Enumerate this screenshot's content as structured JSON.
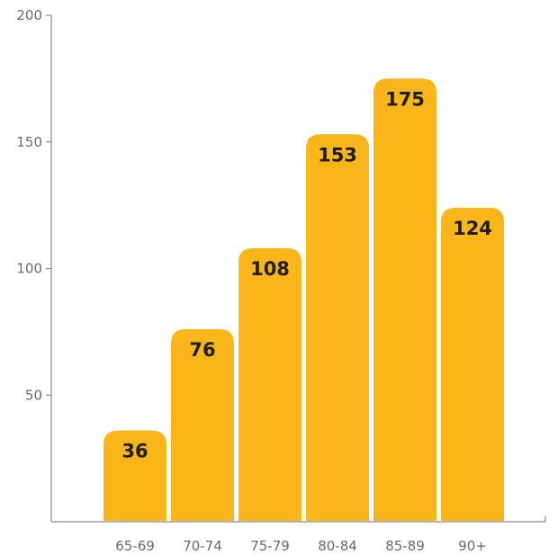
{
  "chart_data": {
    "type": "bar",
    "categories": [
      "65-69",
      "70-74",
      "75-79",
      "80-84",
      "85-89",
      "90+"
    ],
    "values": [
      36,
      76,
      108,
      153,
      175,
      124
    ],
    "value_labels": [
      "36",
      "76",
      "108",
      "153",
      "175",
      "124"
    ],
    "title": "",
    "xlabel": "",
    "ylabel": "",
    "ylim": [
      0,
      200
    ],
    "yticks": [
      50,
      100,
      150,
      200
    ],
    "ytick_labels": [
      "50",
      "100",
      "150",
      "200"
    ],
    "grid": false,
    "legend": "none",
    "bar_color": "#F9B51A",
    "value_label_color": "#1F1F1F",
    "axis_color": "#8A8A8A",
    "tick_label_color": "#6B6B6B"
  }
}
